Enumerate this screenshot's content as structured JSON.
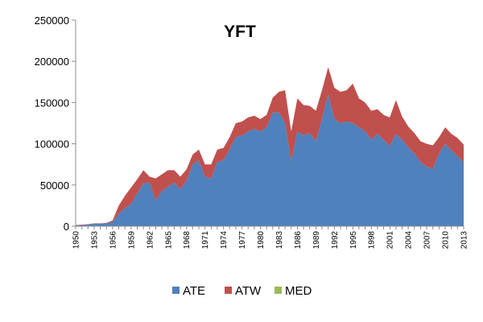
{
  "chart_data": {
    "type": "area",
    "stacked": true,
    "title": "YFT",
    "xlabel": "",
    "ylabel": "",
    "ylim": [
      0,
      250000
    ],
    "yticks": [
      0,
      50000,
      100000,
      150000,
      200000,
      250000
    ],
    "xlim": [
      1950,
      2013
    ],
    "xtick_labels": [
      "1950",
      "1953",
      "1956",
      "1959",
      "1962",
      "1965",
      "1968",
      "1971",
      "1974",
      "1977",
      "1980",
      "1983",
      "1986",
      "1989",
      "1992",
      "1995",
      "1998",
      "2001",
      "2004",
      "2007",
      "2010",
      "2013"
    ],
    "grid": false,
    "legend_position": "bottom",
    "x": [
      1950,
      1951,
      1952,
      1953,
      1954,
      1955,
      1956,
      1957,
      1958,
      1959,
      1960,
      1961,
      1962,
      1963,
      1964,
      1965,
      1966,
      1967,
      1968,
      1969,
      1970,
      1971,
      1972,
      1973,
      1974,
      1975,
      1976,
      1977,
      1978,
      1979,
      1980,
      1981,
      1982,
      1983,
      1984,
      1985,
      1986,
      1987,
      1988,
      1989,
      1990,
      1991,
      1992,
      1993,
      1994,
      1995,
      1996,
      1997,
      1998,
      1999,
      2000,
      2001,
      2002,
      2003,
      2004,
      2005,
      2006,
      2007,
      2008,
      2009,
      2010,
      2011,
      2012,
      2013
    ],
    "series": [
      {
        "name": "ATE",
        "color": "#4f81bd",
        "values": [
          1000,
          1500,
          2000,
          3000,
          3000,
          3500,
          5000,
          15000,
          22000,
          27000,
          40000,
          52000,
          53000,
          31000,
          43000,
          48000,
          53000,
          45000,
          55000,
          75000,
          80000,
          60000,
          58000,
          78000,
          80000,
          93000,
          108000,
          110000,
          115000,
          118000,
          115000,
          120000,
          138000,
          138000,
          125000,
          78000,
          115000,
          110000,
          113000,
          103000,
          130000,
          160000,
          130000,
          125000,
          127000,
          125000,
          120000,
          115000,
          105000,
          112000,
          105000,
          97000,
          112000,
          105000,
          96000,
          88000,
          78000,
          72000,
          70000,
          88000,
          100000,
          92000,
          85000,
          77000
        ]
      },
      {
        "name": "ATW",
        "color": "#c0504d",
        "values": [
          500,
          500,
          500,
          500,
          500,
          500,
          2000,
          10000,
          15000,
          20000,
          17000,
          16000,
          7000,
          27000,
          20000,
          20000,
          15000,
          15000,
          14000,
          12000,
          13000,
          15000,
          17000,
          15000,
          15000,
          15000,
          17000,
          17000,
          17000,
          16000,
          15000,
          15000,
          18000,
          25000,
          40000,
          37000,
          40000,
          37000,
          33000,
          37000,
          35000,
          33000,
          38000,
          38000,
          38000,
          48000,
          35000,
          35000,
          35000,
          30000,
          30000,
          35000,
          41000,
          28000,
          25000,
          25000,
          25000,
          28000,
          28000,
          20000,
          20000,
          20000,
          22000,
          22000
        ]
      },
      {
        "name": "MED",
        "color": "#9bbb59",
        "values": [
          0,
          0,
          0,
          0,
          0,
          0,
          0,
          0,
          0,
          0,
          0,
          0,
          0,
          0,
          0,
          0,
          0,
          0,
          0,
          0,
          0,
          0,
          0,
          0,
          0,
          0,
          0,
          0,
          0,
          0,
          0,
          0,
          0,
          0,
          0,
          0,
          0,
          0,
          0,
          0,
          0,
          0,
          0,
          0,
          0,
          0,
          0,
          0,
          0,
          0,
          0,
          0,
          0,
          0,
          0,
          0,
          0,
          0,
          0,
          0,
          0,
          0,
          0,
          0
        ]
      }
    ]
  }
}
